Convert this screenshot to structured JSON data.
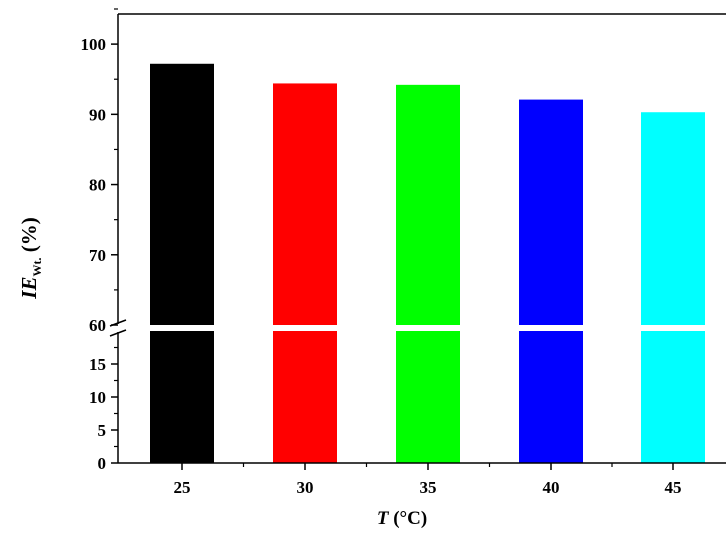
{
  "chart_data": {
    "type": "bar",
    "categories": [
      "25",
      "30",
      "35",
      "40",
      "45"
    ],
    "values": [
      97.2,
      94.4,
      94.2,
      92.1,
      90.3
    ],
    "colors": [
      "#000000",
      "#ff0000",
      "#00ff00",
      "#0000ff",
      "#00ffff"
    ],
    "xlabel": {
      "symbol": "T",
      "unit": " (°C)"
    },
    "ylabel": {
      "symbol": "IE",
      "subscript": "Wt.",
      "unit": " (%)"
    },
    "y_axis_break": true,
    "ylim_lower": [
      0,
      20
    ],
    "ylim_upper": [
      60,
      105
    ],
    "yticks_lower": [
      0,
      5,
      10,
      15
    ],
    "yticks_upper": [
      60,
      70,
      80,
      90,
      100
    ],
    "xtick_labels": [
      "25",
      "30",
      "35",
      "40",
      "45"
    ]
  }
}
